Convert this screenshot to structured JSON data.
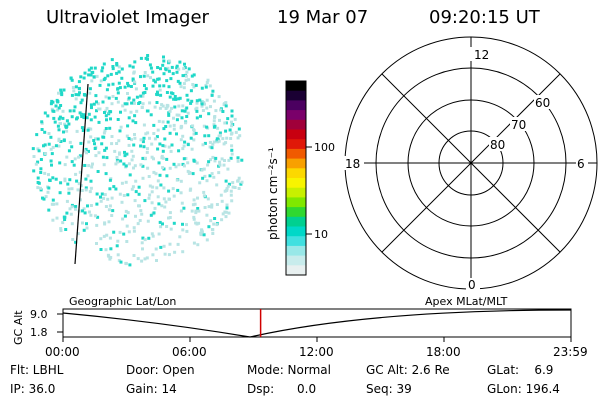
{
  "header": {
    "title": "Ultraviolet Imager",
    "date": "19 Mar 07",
    "time": "09:20:15 UT"
  },
  "colorbar": {
    "label": "photon cm⁻²s⁻¹",
    "ticks": [
      "100",
      "10"
    ],
    "colors": [
      "#000000",
      "#1a0033",
      "#4b0060",
      "#7a006a",
      "#a0003a",
      "#c80010",
      "#e01808",
      "#f05a00",
      "#f8a000",
      "#fcd800",
      "#f8f400",
      "#c8f000",
      "#80e800",
      "#30d830",
      "#00d090",
      "#00d8c8",
      "#40e0e0",
      "#98e8e8",
      "#c8ecec",
      "#e8f0f0"
    ]
  },
  "polar": {
    "labels": {
      "top": "12",
      "bottom": "0",
      "left": "18",
      "right": "6"
    },
    "rings": [
      "80",
      "70",
      "60"
    ]
  },
  "timeline": {
    "ylabel": "GC Alt",
    "yticks": [
      "9.0",
      "1.8"
    ],
    "left_label": "Geographic Lat/Lon",
    "right_label": "Apex  MLat/MLT",
    "xticks": [
      "00:00",
      "06:00",
      "12:00",
      "18:00",
      "23:59"
    ],
    "current_fraction": 0.389
  },
  "info": {
    "filter": "Flt: LBHL",
    "door": "Door: Open",
    "mode": "Mode: Normal",
    "gc_alt": "GC Alt: 2.6 Re",
    "glat": "GLat:    6.9",
    "ip": "IP: 36.0",
    "gain": "Gain: 14",
    "dsp": "Dsp:      0.0",
    "seq": "Seq: 39",
    "glon": "GLon: 196.4"
  },
  "colors": {
    "aurora_cyan": "#20d8c8",
    "aurora_light": "#b8e4e4",
    "marker_red": "#d00000"
  }
}
